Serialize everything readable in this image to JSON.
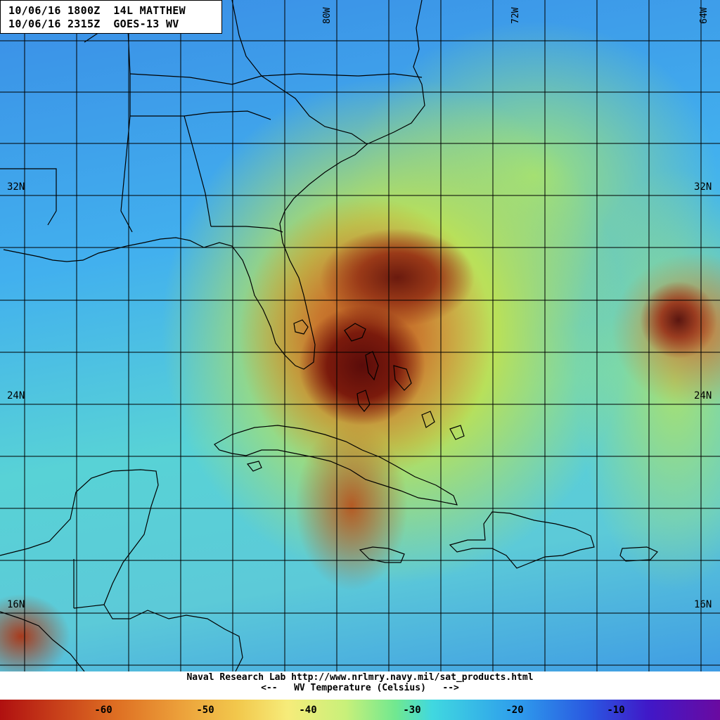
{
  "header": {
    "line1": "10/06/16 1800Z  14L MATTHEW",
    "line2": "10/06/16 2315Z  GOES-13 WV"
  },
  "latitudes": {
    "lat32_left": "32N",
    "lat32_right": "32N",
    "lat24_left": "24N",
    "lat24_right": "24N",
    "lat16_left": "16N",
    "lat16_right": "16N"
  },
  "longitudes": {
    "lon80": "80W",
    "lon72": "72W",
    "lon64": "64W"
  },
  "footer": {
    "credit": "Naval Research Lab http://www.nrlmry.navy.mil/sat_products.html",
    "scale_title": "<--   WV Temperature (Celsius)   -->"
  },
  "colorbar": {
    "ticks": [
      "-60",
      "-50",
      "-40",
      "-30",
      "-20",
      "-10"
    ],
    "colors": {
      "cold": "#b01010",
      "mid": "#40d8e0",
      "warm": "#6a0aa0"
    }
  }
}
